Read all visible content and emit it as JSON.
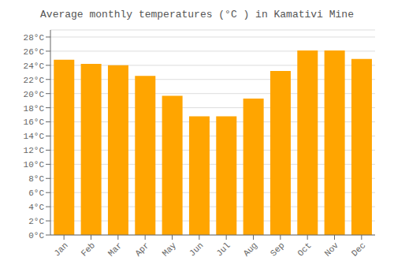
{
  "chart_data": {
    "type": "bar",
    "title": "Average monthly temperatures (°C ) in Kamativi Mine",
    "categories": [
      "Jan",
      "Feb",
      "Mar",
      "Apr",
      "May",
      "Jun",
      "Jul",
      "Aug",
      "Sep",
      "Oct",
      "Nov",
      "Dec"
    ],
    "values": [
      24.8,
      24.2,
      24.0,
      22.5,
      19.7,
      16.8,
      16.8,
      19.3,
      23.2,
      26.1,
      26.1,
      24.9
    ],
    "color": "#FFA500",
    "ylim": [
      0,
      29
    ],
    "yticks": [
      {
        "value": 0,
        "label": "0°C"
      },
      {
        "value": 2,
        "label": "2°C"
      },
      {
        "value": 4,
        "label": "4°C"
      },
      {
        "value": 6,
        "label": "6°C"
      },
      {
        "value": 8,
        "label": "8°C"
      },
      {
        "value": 10,
        "label": "10°C"
      },
      {
        "value": 12,
        "label": "12°C"
      },
      {
        "value": 14,
        "label": "14°C"
      },
      {
        "value": 16,
        "label": "16°C"
      },
      {
        "value": 18,
        "label": "18°C"
      },
      {
        "value": 20,
        "label": "20°C"
      },
      {
        "value": 22,
        "label": "22°C"
      },
      {
        "value": 24,
        "label": "24°C"
      },
      {
        "value": 26,
        "label": "26°C"
      },
      {
        "value": 28,
        "label": "28°C"
      }
    ],
    "grid": true
  }
}
